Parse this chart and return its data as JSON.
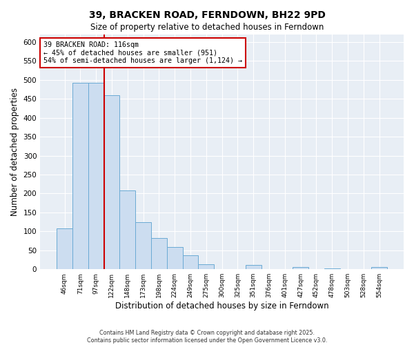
{
  "title": "39, BRACKEN ROAD, FERNDOWN, BH22 9PD",
  "subtitle": "Size of property relative to detached houses in Ferndown",
  "xlabel": "Distribution of detached houses by size in Ferndown",
  "ylabel": "Number of detached properties",
  "bar_labels": [
    "46sqm",
    "71sqm",
    "97sqm",
    "122sqm",
    "148sqm",
    "173sqm",
    "198sqm",
    "224sqm",
    "249sqm",
    "275sqm",
    "300sqm",
    "325sqm",
    "351sqm",
    "376sqm",
    "401sqm",
    "427sqm",
    "452sqm",
    "478sqm",
    "503sqm",
    "528sqm",
    "554sqm"
  ],
  "bar_values": [
    107,
    493,
    493,
    460,
    208,
    125,
    83,
    58,
    37,
    13,
    0,
    0,
    11,
    0,
    0,
    5,
    0,
    2,
    0,
    0,
    5
  ],
  "bar_color": "#ccddf0",
  "bar_edge_color": "#6aaad4",
  "vline_color": "#cc0000",
  "annotation_title": "39 BRACKEN ROAD: 116sqm",
  "annotation_line1": "← 45% of detached houses are smaller (951)",
  "annotation_line2": "54% of semi-detached houses are larger (1,124) →",
  "annotation_edge_color": "#cc0000",
  "ylim": [
    0,
    620
  ],
  "yticks": [
    0,
    50,
    100,
    150,
    200,
    250,
    300,
    350,
    400,
    450,
    500,
    550,
    600
  ],
  "footnote1": "Contains HM Land Registry data © Crown copyright and database right 2025.",
  "footnote2": "Contains public sector information licensed under the Open Government Licence v3.0.",
  "bg_color": "#ffffff",
  "plot_bg_color": "#e8eef5",
  "grid_color": "#ffffff",
  "title_fontsize": 10,
  "subtitle_fontsize": 9
}
